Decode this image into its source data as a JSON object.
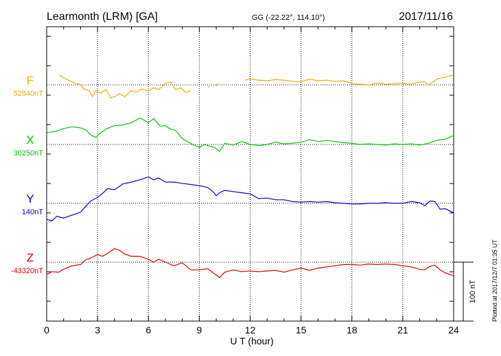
{
  "header": {
    "station": "Learmonth (LRM)  [GA]",
    "coords": "GG (-22.22°, 114.10°)",
    "date": "2017/11/16"
  },
  "footer": {
    "plotted": "Plotted at 2017/12/7 01:35 UT",
    "scale_label": "100 nT"
  },
  "chart_data": {
    "type": "line",
    "xlabel": "U T (hour)",
    "xlim": [
      0,
      24
    ],
    "xticks": [
      0,
      3,
      6,
      9,
      12,
      15,
      18,
      21,
      24
    ],
    "scale_nT": 100,
    "grid": true,
    "series": [
      {
        "name": "F",
        "baseline_label": "52840nT",
        "baseline": 52840,
        "color": "#f0a800",
        "x": [
          0.75,
          1.0,
          1.5,
          2.0,
          2.2,
          2.5,
          2.7,
          2.9,
          3.2,
          3.5,
          3.8,
          4.0,
          4.3,
          4.6,
          5.0,
          5.3,
          5.6,
          6.0,
          6.3,
          6.6,
          7.0,
          7.3,
          7.6,
          7.9,
          8.2,
          8.5,
          null,
          9.5,
          9.6,
          null,
          10.0,
          10.1,
          null,
          11.7,
          12.0,
          12.5,
          13.0,
          13.5,
          14.0,
          14.5,
          15.0,
          15.5,
          16.0,
          16.5,
          17.0,
          17.5,
          18.0,
          18.5,
          19.0,
          19.5,
          20.0,
          20.5,
          21.0,
          21.5,
          22.0,
          22.3,
          22.5,
          22.8,
          23.0,
          23.5,
          24.0
        ],
        "y": [
          52857,
          52852,
          52845,
          52840,
          52833,
          52830,
          52820,
          52830,
          52826,
          52832,
          52818,
          52820,
          52825,
          52820,
          52830,
          52828,
          52833,
          52830,
          52835,
          52832,
          52843,
          52845,
          52832,
          52835,
          52827,
          52830,
          null,
          52836,
          52837,
          null,
          52838,
          52842,
          null,
          52848,
          52850,
          52848,
          52847,
          52849,
          52848,
          52846,
          52845,
          52850,
          52847,
          52848,
          52846,
          52847,
          52842,
          52841,
          52840,
          52843,
          52841,
          52842,
          52843,
          52841,
          52845,
          52845,
          52840,
          52845,
          52850,
          52853,
          52857
        ]
      },
      {
        "name": "X",
        "baseline_label": "30250nT",
        "baseline": 30250,
        "color": "#00c800",
        "x": [
          0,
          0.5,
          1.0,
          1.5,
          2.0,
          2.3,
          2.6,
          2.9,
          3.2,
          3.5,
          4.0,
          4.5,
          5.0,
          5.5,
          6.0,
          6.3,
          6.7,
          7.0,
          7.3,
          7.6,
          8.0,
          8.3,
          8.6,
          9.0,
          9.3,
          9.6,
          9.9,
          10.2,
          10.5,
          11.0,
          11.5,
          12.0,
          12.5,
          13.0,
          13.5,
          14.0,
          14.5,
          15.0,
          15.5,
          16.0,
          16.5,
          17.0,
          17.5,
          18.0,
          18.5,
          19.0,
          19.5,
          20.0,
          20.5,
          21.0,
          21.5,
          22.0,
          22.5,
          23.0,
          23.5,
          24.0
        ],
        "y": [
          30270,
          30272,
          30277,
          30280,
          30278,
          30275,
          30266,
          30262,
          30270,
          30276,
          30282,
          30283,
          30287,
          30295,
          30287,
          30294,
          30281,
          30282,
          30276,
          30274,
          30260,
          30255,
          30250,
          30245,
          30250,
          30247,
          30245,
          30238,
          30252,
          30249,
          30255,
          30250,
          30248,
          30250,
          30254,
          30251,
          30252,
          30254,
          30258,
          30255,
          30257,
          30255,
          30253,
          30252,
          30250,
          30251,
          30250,
          30249,
          30251,
          30250,
          30251,
          30249,
          30252,
          30257,
          30259,
          30265
        ]
      },
      {
        "name": "Y",
        "baseline_label": "140nT",
        "baseline": 140,
        "color": "#0000d0",
        "x": [
          0,
          0.3,
          0.6,
          1.0,
          1.5,
          2.0,
          2.3,
          2.6,
          3.0,
          3.3,
          3.6,
          4.0,
          4.5,
          5.0,
          5.5,
          6.0,
          6.3,
          6.6,
          7.0,
          7.5,
          8.0,
          8.5,
          9.0,
          9.5,
          9.8,
          10.0,
          10.2,
          10.5,
          11.0,
          11.5,
          12.0,
          12.5,
          13.0,
          13.5,
          14.0,
          14.5,
          15.0,
          15.5,
          16.0,
          16.5,
          17.0,
          17.5,
          18.0,
          18.5,
          19.0,
          19.5,
          20.0,
          20.5,
          21.0,
          21.5,
          22.0,
          22.3,
          22.6,
          22.9,
          23.2,
          23.5,
          24.0
        ],
        "y": [
          113,
          110,
          118,
          115,
          120,
          125,
          135,
          144,
          150,
          157,
          165,
          163,
          173,
          176,
          180,
          185,
          180,
          183,
          176,
          176,
          174,
          172,
          170,
          167,
          160,
          153,
          158,
          162,
          160,
          158,
          156,
          148,
          149,
          146,
          146,
          143,
          142,
          143,
          142,
          143,
          141,
          140,
          139,
          139,
          140,
          140,
          141,
          140,
          140,
          143,
          141,
          136,
          144,
          143,
          130,
          131,
          124
        ]
      },
      {
        "name": "Z",
        "baseline_label": "-43320nT",
        "baseline": -43320,
        "color": "#e00000",
        "x": [
          0,
          0.3,
          0.7,
          1.0,
          1.5,
          2.0,
          2.3,
          2.6,
          3.0,
          3.3,
          3.6,
          4.0,
          4.3,
          4.6,
          5.0,
          5.5,
          6.0,
          6.3,
          6.6,
          7.0,
          7.5,
          8.0,
          8.5,
          9.0,
          9.5,
          10.0,
          10.2,
          10.5,
          11.0,
          11.5,
          12.0,
          12.5,
          13.0,
          13.5,
          14.0,
          14.5,
          15.0,
          15.5,
          16.0,
          16.5,
          17.0,
          17.5,
          18.0,
          18.5,
          19.0,
          19.5,
          20.0,
          20.5,
          21.0,
          21.5,
          22.0,
          22.3,
          22.6,
          22.9,
          23.2,
          23.5,
          24.0
        ],
        "y": [
          -43341,
          -43336,
          -43337,
          -43332,
          -43326,
          -43324,
          -43316,
          -43313,
          -43307,
          -43310,
          -43305,
          -43297,
          -43300,
          -43306,
          -43310,
          -43310,
          -43315,
          -43320,
          -43315,
          -43320,
          -43326,
          -43321,
          -43333,
          -43333,
          -43331,
          -43342,
          -43346,
          -43337,
          -43333,
          -43336,
          -43335,
          -43336,
          -43335,
          -43334,
          -43337,
          -43333,
          -43330,
          -43334,
          -43330,
          -43328,
          -43326,
          -43324,
          -43324,
          -43325,
          -43323,
          -43324,
          -43323,
          -43324,
          -43326,
          -43328,
          -43332,
          -43333,
          -43327,
          -43325,
          -43333,
          -43338,
          -43343
        ]
      }
    ]
  }
}
